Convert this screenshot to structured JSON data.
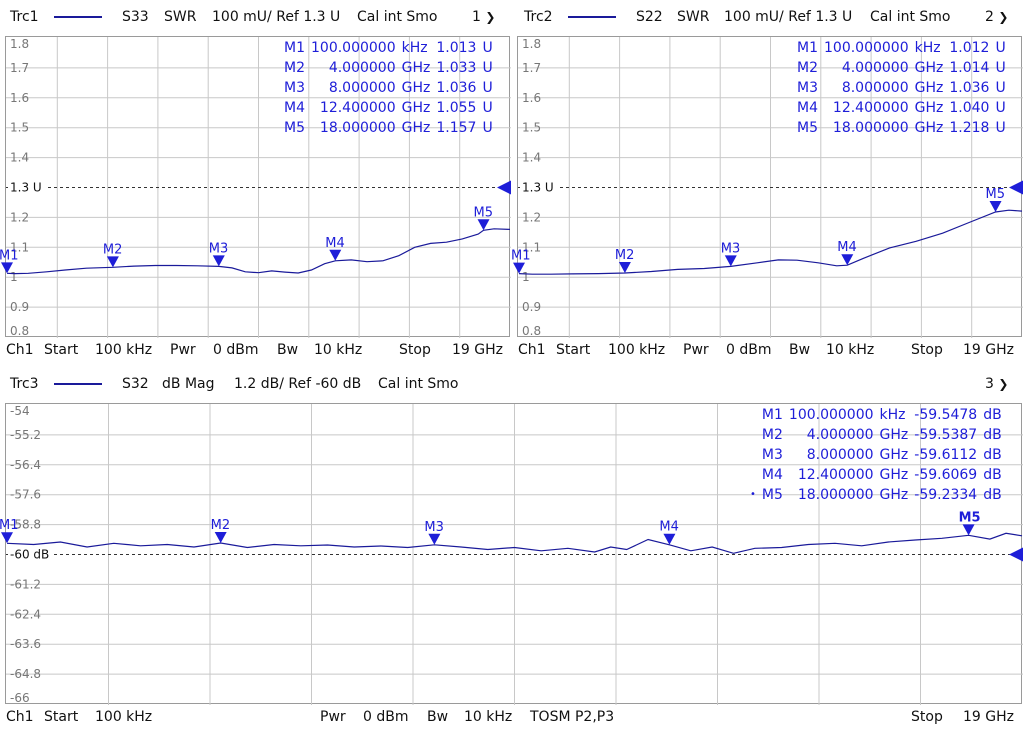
{
  "colors": {
    "trace": "#1a1a9a",
    "marker": "#1e1ed8",
    "grid": "#c8c8c8",
    "axis_text": "#777777"
  },
  "chart_data": [
    {
      "type": "line",
      "trace": "Trc1",
      "param": "S33",
      "format": "SWR",
      "scale": "100 mU/ Ref 1.3 U",
      "cal": "Cal int Smo",
      "window": "1",
      "ylim": [
        0.8,
        1.8
      ],
      "yticks": [
        "1.8",
        "1.7",
        "1.6",
        "1.5",
        "1.4",
        "1.3 U",
        "1.2",
        "1.1",
        "1",
        "0.9",
        "0.8"
      ],
      "ref_value": 1.3,
      "ref_label": "1.3 U",
      "xlim_ghz": [
        0.0001,
        19
      ],
      "x_ghz": [
        0.0001,
        0.3,
        0.8,
        1.5,
        2.2,
        3.0,
        4.0,
        4.8,
        5.6,
        6.4,
        7.2,
        8.0,
        8.5,
        9.0,
        9.5,
        10.0,
        10.5,
        11.0,
        11.5,
        12.0,
        12.4,
        13.0,
        13.6,
        14.2,
        14.8,
        15.4,
        16.0,
        16.6,
        17.2,
        17.8,
        18.0,
        18.4,
        19.0
      ],
      "y": [
        1.013,
        1.012,
        1.013,
        1.018,
        1.024,
        1.03,
        1.033,
        1.037,
        1.039,
        1.039,
        1.038,
        1.036,
        1.031,
        1.018,
        1.015,
        1.021,
        1.017,
        1.014,
        1.024,
        1.045,
        1.055,
        1.058,
        1.052,
        1.055,
        1.072,
        1.1,
        1.113,
        1.117,
        1.128,
        1.144,
        1.157,
        1.162,
        1.16
      ],
      "markers": [
        {
          "id": "M1",
          "label": "M1",
          "stimulus": "100.000000",
          "unit": "kHz",
          "value": "1.013",
          "vunit": "U",
          "x_ghz": 0.0001,
          "y": 1.013
        },
        {
          "id": "M2",
          "label": "M2",
          "stimulus": "4.000000",
          "unit": "GHz",
          "value": "1.033",
          "vunit": "U",
          "x_ghz": 4.0,
          "y": 1.033
        },
        {
          "id": "M3",
          "label": "M3",
          "stimulus": "8.000000",
          "unit": "GHz",
          "value": "1.036",
          "vunit": "U",
          "x_ghz": 8.0,
          "y": 1.036
        },
        {
          "id": "M4",
          "label": "M4",
          "stimulus": "12.400000",
          "unit": "GHz",
          "value": "1.055",
          "vunit": "U",
          "x_ghz": 12.4,
          "y": 1.055
        },
        {
          "id": "M5",
          "label": "M5",
          "stimulus": "18.000000",
          "unit": "GHz",
          "value": "1.157",
          "vunit": "U",
          "x_ghz": 18.0,
          "y": 1.157
        }
      ],
      "footer": {
        "ch": "Ch1",
        "start_label": "Start",
        "start_value": "100 kHz",
        "pwr_label": "Pwr",
        "pwr_value": "0 dBm",
        "bw_label": "Bw",
        "bw_value": "10 kHz",
        "extra": "",
        "stop_label": "Stop",
        "stop_value": "19 GHz"
      }
    },
    {
      "type": "line",
      "trace": "Trc2",
      "param": "S22",
      "format": "SWR",
      "scale": "100 mU/ Ref 1.3 U",
      "cal": "Cal int Smo",
      "window": "2",
      "ylim": [
        0.8,
        1.8
      ],
      "yticks": [
        "1.8",
        "1.7",
        "1.6",
        "1.5",
        "1.4",
        "1.3 U",
        "1.2",
        "1.1",
        "1",
        "0.9",
        "0.8"
      ],
      "ref_value": 1.3,
      "ref_label": "1.3 U",
      "xlim_ghz": [
        0.0001,
        19
      ],
      "x_ghz": [
        0.0001,
        0.5,
        1.2,
        2.0,
        3.0,
        4.0,
        5.0,
        6.0,
        7.0,
        8.0,
        9.0,
        9.8,
        10.5,
        11.3,
        12.0,
        12.4,
        13.0,
        14.0,
        15.0,
        16.0,
        17.0,
        18.0,
        18.5,
        19.0
      ],
      "y": [
        1.012,
        1.01,
        1.01,
        1.011,
        1.012,
        1.014,
        1.019,
        1.026,
        1.029,
        1.036,
        1.048,
        1.058,
        1.057,
        1.048,
        1.038,
        1.04,
        1.063,
        1.098,
        1.12,
        1.147,
        1.183,
        1.218,
        1.224,
        1.221
      ],
      "markers": [
        {
          "id": "M1",
          "label": "M1",
          "stimulus": "100.000000",
          "unit": "kHz",
          "value": "1.012",
          "vunit": "U",
          "x_ghz": 0.0001,
          "y": 1.012
        },
        {
          "id": "M2",
          "label": "M2",
          "stimulus": "4.000000",
          "unit": "GHz",
          "value": "1.014",
          "vunit": "U",
          "x_ghz": 4.0,
          "y": 1.014
        },
        {
          "id": "M3",
          "label": "M3",
          "stimulus": "8.000000",
          "unit": "GHz",
          "value": "1.036",
          "vunit": "U",
          "x_ghz": 8.0,
          "y": 1.036
        },
        {
          "id": "M4",
          "label": "M4",
          "stimulus": "12.400000",
          "unit": "GHz",
          "value": "1.040",
          "vunit": "U",
          "x_ghz": 12.4,
          "y": 1.04
        },
        {
          "id": "M5",
          "label": "M5",
          "stimulus": "18.000000",
          "unit": "GHz",
          "value": "1.218",
          "vunit": "U",
          "x_ghz": 18.0,
          "y": 1.218
        }
      ],
      "footer": {
        "ch": "Ch1",
        "start_label": "Start",
        "start_value": "100 kHz",
        "pwr_label": "Pwr",
        "pwr_value": "0 dBm",
        "bw_label": "Bw",
        "bw_value": "10 kHz",
        "extra": "",
        "stop_label": "Stop",
        "stop_value": "19 GHz"
      }
    },
    {
      "type": "line",
      "trace": "Trc3",
      "param": "S32",
      "format": "dB Mag",
      "scale": "1.2 dB/ Ref -60 dB",
      "cal": "Cal int Smo",
      "window": "3",
      "ylim": [
        -66,
        -54
      ],
      "yticks": [
        "-54",
        "-55.2",
        "-56.4",
        "-57.6",
        "-58.8",
        "-60 dB",
        "-61.2",
        "-62.4",
        "-63.6",
        "-64.8",
        "-66"
      ],
      "ref_value": -60,
      "ref_label": "-60 dB",
      "xlim_ghz": [
        0.0001,
        19
      ],
      "x_ghz": [
        0.0001,
        0.5,
        1.0,
        1.5,
        2.0,
        2.5,
        3.0,
        3.5,
        4.0,
        4.5,
        5.0,
        5.5,
        6.0,
        6.5,
        7.0,
        7.5,
        8.0,
        8.5,
        9.0,
        9.5,
        10.0,
        10.5,
        11.0,
        11.3,
        11.6,
        12.0,
        12.4,
        12.8,
        13.2,
        13.6,
        14.0,
        14.5,
        15.0,
        15.5,
        16.0,
        16.5,
        17.0,
        17.5,
        18.0,
        18.4,
        18.7,
        19.0
      ],
      "y": [
        -59.55,
        -59.6,
        -59.5,
        -59.7,
        -59.55,
        -59.65,
        -59.6,
        -59.7,
        -59.54,
        -59.72,
        -59.6,
        -59.65,
        -59.62,
        -59.7,
        -59.66,
        -59.72,
        -59.61,
        -59.7,
        -59.8,
        -59.72,
        -59.85,
        -59.75,
        -59.9,
        -59.7,
        -59.8,
        -59.4,
        -59.61,
        -59.85,
        -59.7,
        -59.95,
        -59.75,
        -59.72,
        -59.6,
        -59.55,
        -59.65,
        -59.5,
        -59.42,
        -59.35,
        -59.23,
        -59.38,
        -59.15,
        -59.25
      ],
      "markers": [
        {
          "id": "M1",
          "label": "M1",
          "stimulus": "100.000000",
          "unit": "kHz",
          "value": "-59.5478",
          "vunit": "dB",
          "x_ghz": 0.0001,
          "y": -59.5478,
          "active": false
        },
        {
          "id": "M2",
          "label": "M2",
          "stimulus": "4.000000",
          "unit": "GHz",
          "value": "-59.5387",
          "vunit": "dB",
          "x_ghz": 4.0,
          "y": -59.5387,
          "active": false
        },
        {
          "id": "M3",
          "label": "M3",
          "stimulus": "8.000000",
          "unit": "GHz",
          "value": "-59.6112",
          "vunit": "dB",
          "x_ghz": 8.0,
          "y": -59.6112,
          "active": false
        },
        {
          "id": "M4",
          "label": "M4",
          "stimulus": "12.400000",
          "unit": "GHz",
          "value": "-59.6069",
          "vunit": "dB",
          "x_ghz": 12.4,
          "y": -59.6069,
          "active": false
        },
        {
          "id": "M5",
          "label": "M5",
          "stimulus": "18.000000",
          "unit": "GHz",
          "value": "-59.2334",
          "vunit": "dB",
          "x_ghz": 18.0,
          "y": -59.2334,
          "active": true
        }
      ],
      "footer": {
        "ch": "Ch1",
        "start_label": "Start",
        "start_value": "100 kHz",
        "pwr_label": "Pwr",
        "pwr_value": "0 dBm",
        "bw_label": "Bw",
        "bw_value": "10 kHz",
        "extra": "TOSM P2,P3",
        "stop_label": "Stop",
        "stop_value": "19 GHz"
      }
    }
  ]
}
